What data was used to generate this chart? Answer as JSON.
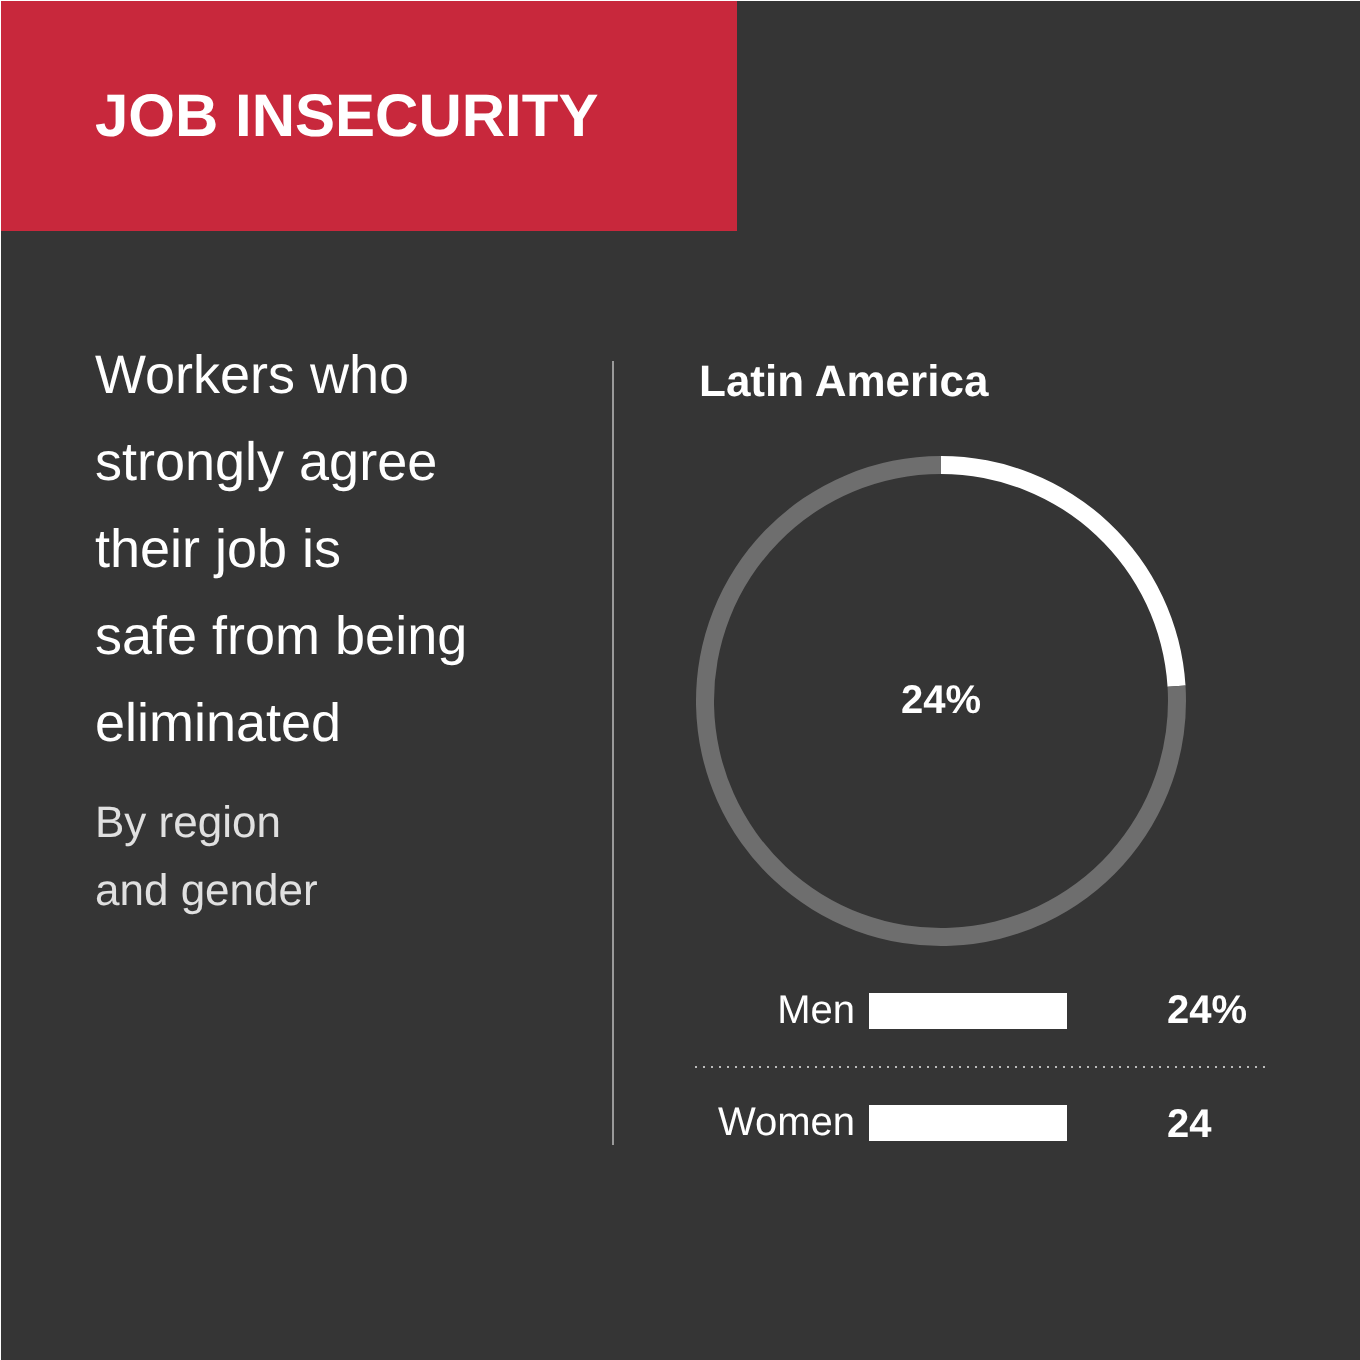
{
  "chart_data": [
    {
      "type": "other",
      "title": "JOB INSECURITY",
      "subtitle": "Workers who strongly agree their job is safe from being eliminated",
      "annotations": [
        "By region and gender"
      ]
    },
    {
      "type": "donut",
      "title": "Latin America",
      "categories": [
        null,
        null
      ],
      "values": [
        24,
        76
      ],
      "colors": [
        "#ffffff",
        "#6e6e6e"
      ],
      "annotations": [
        "24%"
      ]
    },
    {
      "type": "bar",
      "orientation": "horizontal",
      "categories": [
        "Men",
        "Women"
      ],
      "values": [
        24,
        24
      ],
      "color": "#ffffff",
      "value_labels": [
        "24%",
        "24"
      ]
    }
  ]
}
